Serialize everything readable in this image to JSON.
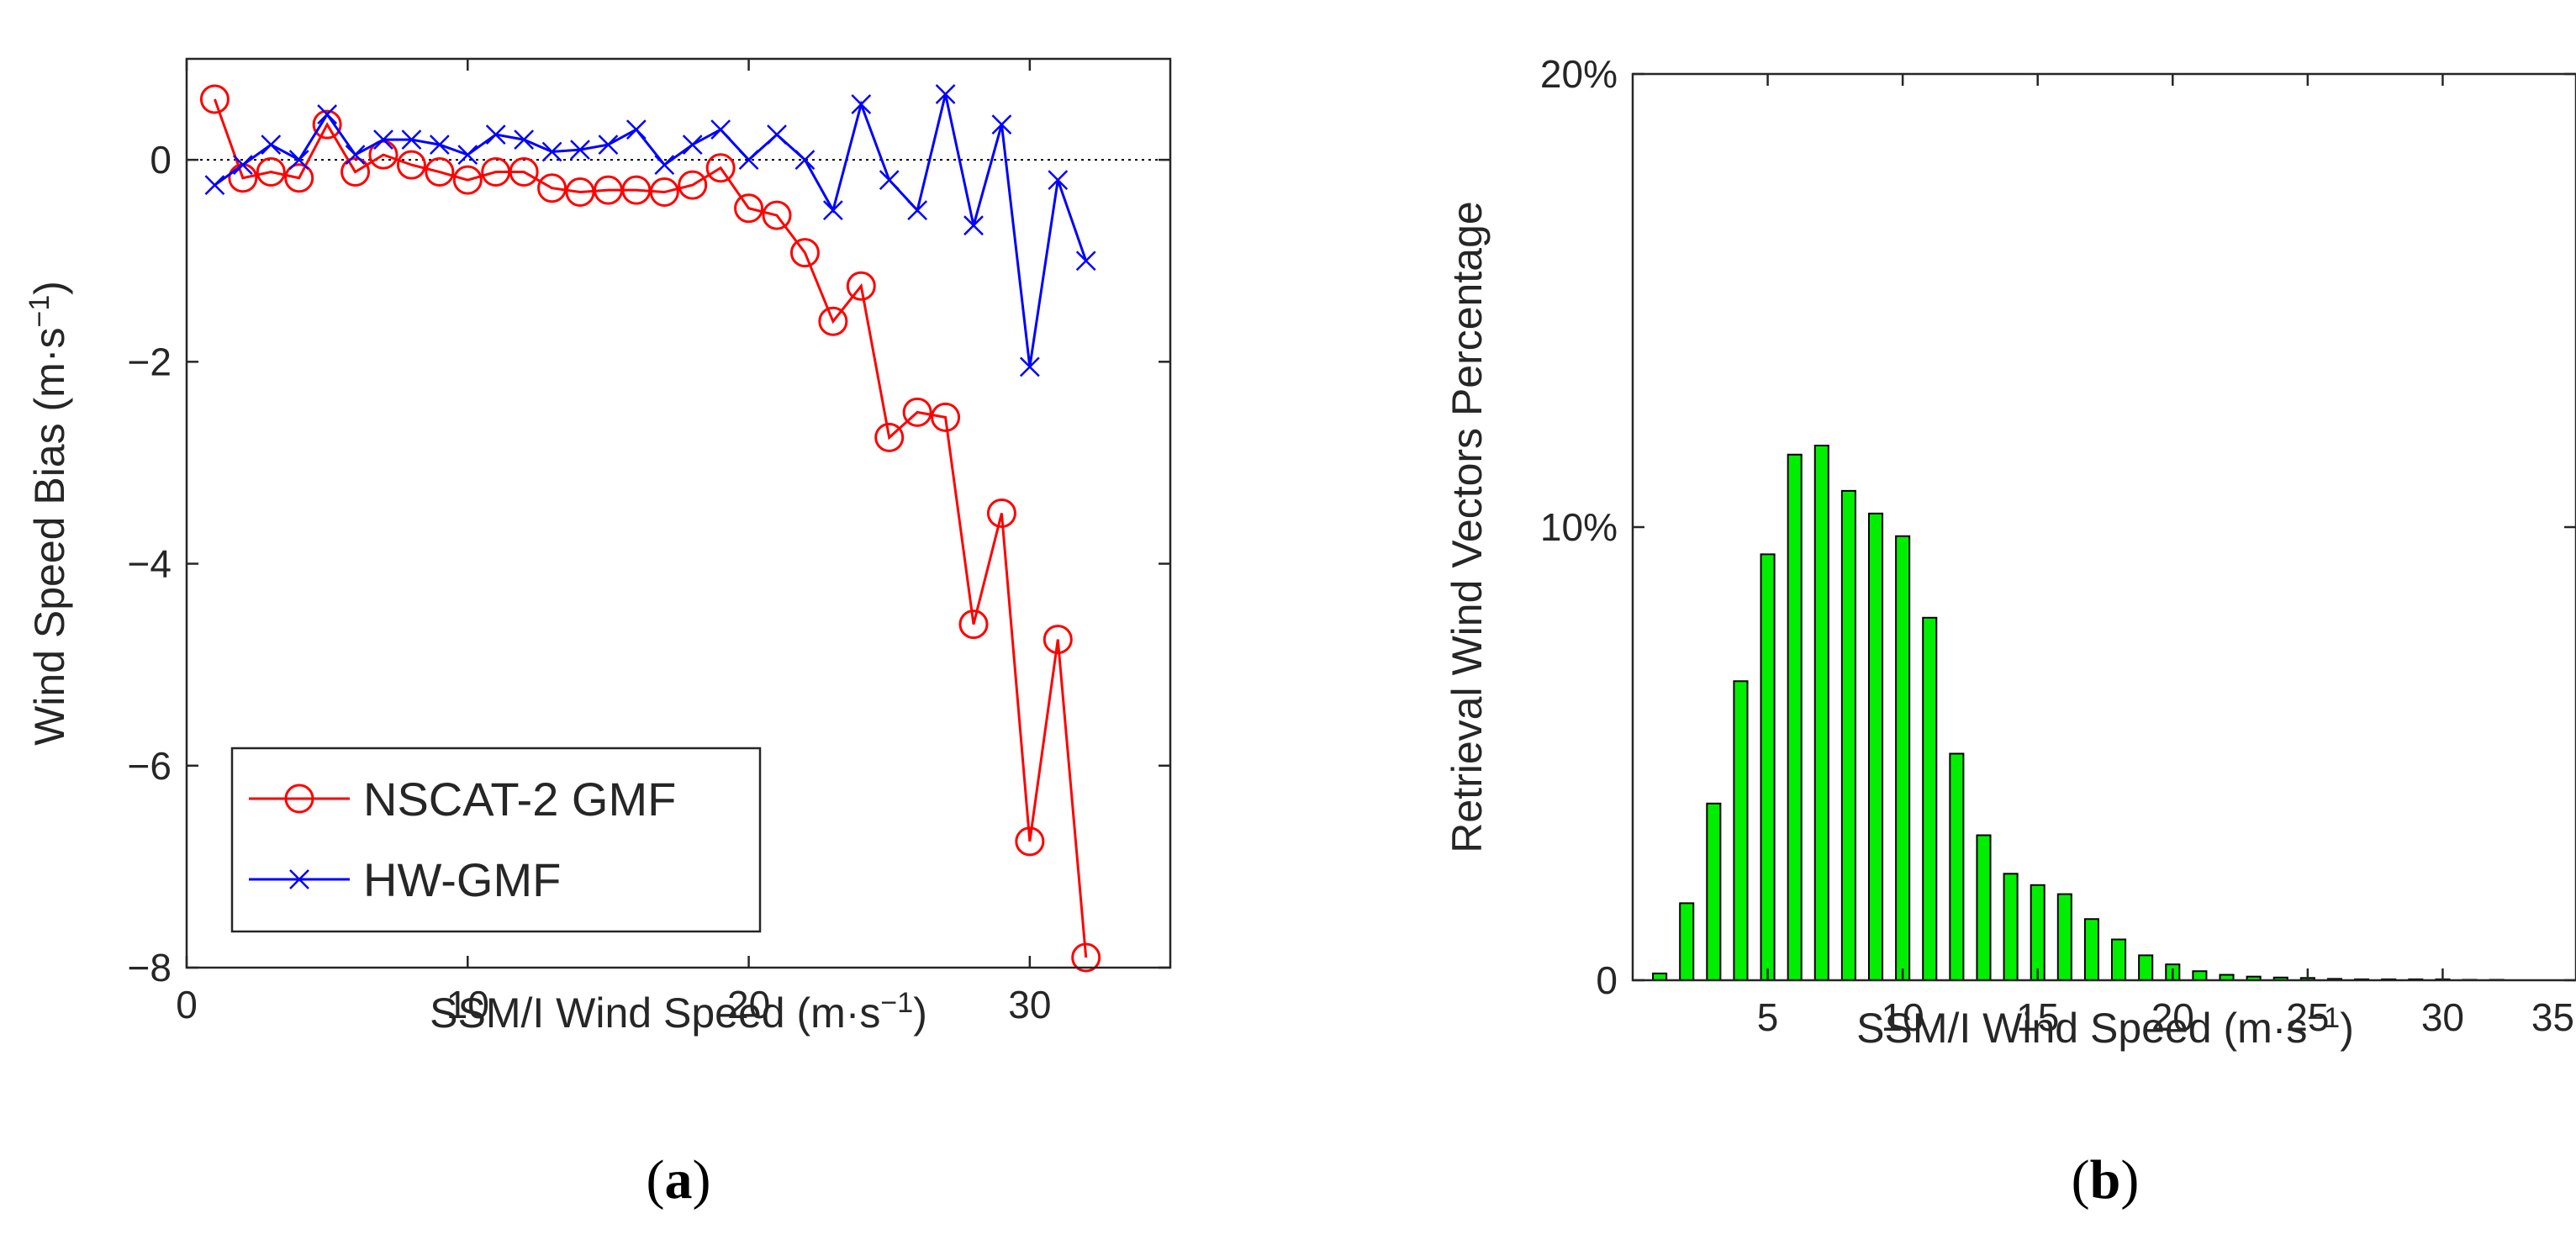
{
  "chart_data": [
    {
      "type": "line",
      "panel_label": {
        "open": "(",
        "letter": "a",
        "close": ")"
      },
      "xlabel": {
        "main": "SSM/I Wind Speed (m·s",
        "sup": "−1",
        "close": ")"
      },
      "ylabel": {
        "main": "Wind Speed Bias (m·s",
        "sup": "−1",
        "close": ")"
      },
      "xlim": [
        0,
        35
      ],
      "ylim": [
        -8,
        1
      ],
      "xticks": [
        0,
        10,
        20,
        30
      ],
      "xtick_labels": [
        "0",
        "10",
        "20",
        "30"
      ],
      "yticks": [
        -8,
        -6,
        -4,
        -2,
        0
      ],
      "ytick_labels": [
        "−8",
        "−6",
        "−4",
        "−2",
        "0"
      ],
      "reference_line": 0,
      "legend_position": "bottom-left",
      "series": [
        {
          "name": "NSCAT-2 GMF",
          "color": "#ff0000",
          "marker": "circle",
          "x": [
            1,
            2,
            3,
            4,
            5,
            6,
            7,
            8,
            9,
            10,
            11,
            12,
            13,
            14,
            15,
            16,
            17,
            18,
            19,
            20,
            21,
            22,
            23,
            24,
            25,
            26,
            27,
            28,
            29,
            30,
            31,
            32
          ],
          "values": [
            0.6,
            -0.18,
            -0.12,
            -0.18,
            0.35,
            -0.12,
            0.05,
            -0.05,
            -0.12,
            -0.2,
            -0.12,
            -0.12,
            -0.28,
            -0.32,
            -0.3,
            -0.3,
            -0.32,
            -0.25,
            -0.08,
            -0.48,
            -0.55,
            -0.92,
            -1.6,
            -1.25,
            -2.75,
            -2.5,
            -2.55,
            -4.6,
            -3.5,
            -6.75,
            -4.75,
            -7.9
          ]
        },
        {
          "name": "HW-GMF",
          "color": "#0000ff",
          "marker": "x",
          "x": [
            1,
            2,
            3,
            4,
            5,
            6,
            7,
            8,
            9,
            10,
            11,
            12,
            13,
            14,
            15,
            16,
            17,
            18,
            19,
            20,
            21,
            22,
            23,
            24,
            25,
            26,
            27,
            28,
            29,
            30,
            31,
            32
          ],
          "values": [
            -0.25,
            -0.05,
            0.15,
            0.0,
            0.45,
            0.05,
            0.2,
            0.2,
            0.15,
            0.05,
            0.25,
            0.2,
            0.08,
            0.1,
            0.15,
            0.3,
            -0.05,
            0.15,
            0.3,
            0.0,
            0.25,
            0.0,
            -0.5,
            0.55,
            -0.2,
            -0.5,
            0.65,
            -0.65,
            0.35,
            -2.05,
            -0.2,
            -1.0
          ]
        }
      ]
    },
    {
      "type": "bar",
      "panel_label": {
        "open": "(",
        "letter": "b",
        "close": ")"
      },
      "xlabel": {
        "main": "SSM/I Wind Speed (m·s",
        "sup": "−1",
        "close": ")"
      },
      "ylabel": {
        "main": "Retrieval Wind Vectors Percentage",
        "sup": "",
        "close": ""
      },
      "xlim": [
        0,
        35
      ],
      "ylim": [
        0,
        20
      ],
      "xticks": [
        5,
        10,
        15,
        20,
        25,
        30,
        35
      ],
      "xtick_labels": [
        "5",
        "10",
        "15",
        "20",
        "25",
        "30",
        "35"
      ],
      "yticks": [
        0,
        10,
        20
      ],
      "ytick_labels": [
        "0",
        "10%",
        "20%"
      ],
      "bar_color": "#00ee00",
      "x": [
        1,
        2,
        3,
        4,
        5,
        6,
        7,
        8,
        9,
        10,
        11,
        12,
        13,
        14,
        15,
        16,
        17,
        18,
        19,
        20,
        21,
        22,
        23,
        24,
        25,
        26,
        27,
        28,
        29,
        30,
        31,
        32
      ],
      "values": [
        0.15,
        1.7,
        3.9,
        6.6,
        9.4,
        11.6,
        11.8,
        10.8,
        10.3,
        9.8,
        8.0,
        5.0,
        3.2,
        2.35,
        2.1,
        1.9,
        1.35,
        0.9,
        0.55,
        0.35,
        0.2,
        0.12,
        0.08,
        0.06,
        0.05,
        0.03,
        0.02,
        0.02,
        0.02,
        0.02,
        0.01,
        0.01
      ]
    }
  ]
}
